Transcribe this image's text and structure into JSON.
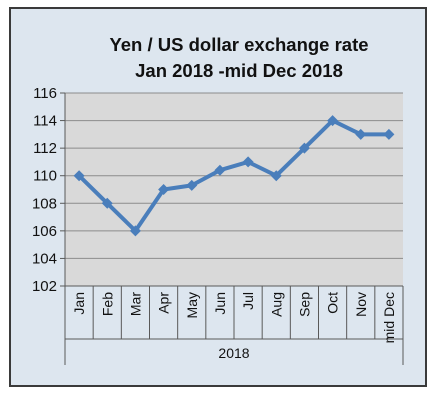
{
  "chart_data": {
    "type": "line",
    "title_lines": [
      "Yen / US dollar exchange rate",
      "Jan 2018 -mid Dec 2018"
    ],
    "categories": [
      "Jan",
      "Feb",
      "Mar",
      "Apr",
      "May",
      "Jun",
      "Jul",
      "Aug",
      "Sep",
      "Oct",
      "Nov",
      "mid Dec"
    ],
    "category_group": "2018",
    "series": [
      {
        "values": [
          110,
          108,
          106,
          109,
          109.3,
          110.4,
          111,
          110,
          112,
          114,
          113,
          113
        ]
      }
    ],
    "ylim": [
      102,
      116
    ],
    "yticks": [
      102,
      104,
      106,
      108,
      110,
      112,
      114,
      116
    ],
    "xlabel": "",
    "ylabel": "",
    "grid": true,
    "legend": "none",
    "colors": {
      "line": "#4a7ebb",
      "plot_background": "#d9d9d9",
      "chart_background": "#dde6ef",
      "grid": "#8c8c8c"
    }
  }
}
